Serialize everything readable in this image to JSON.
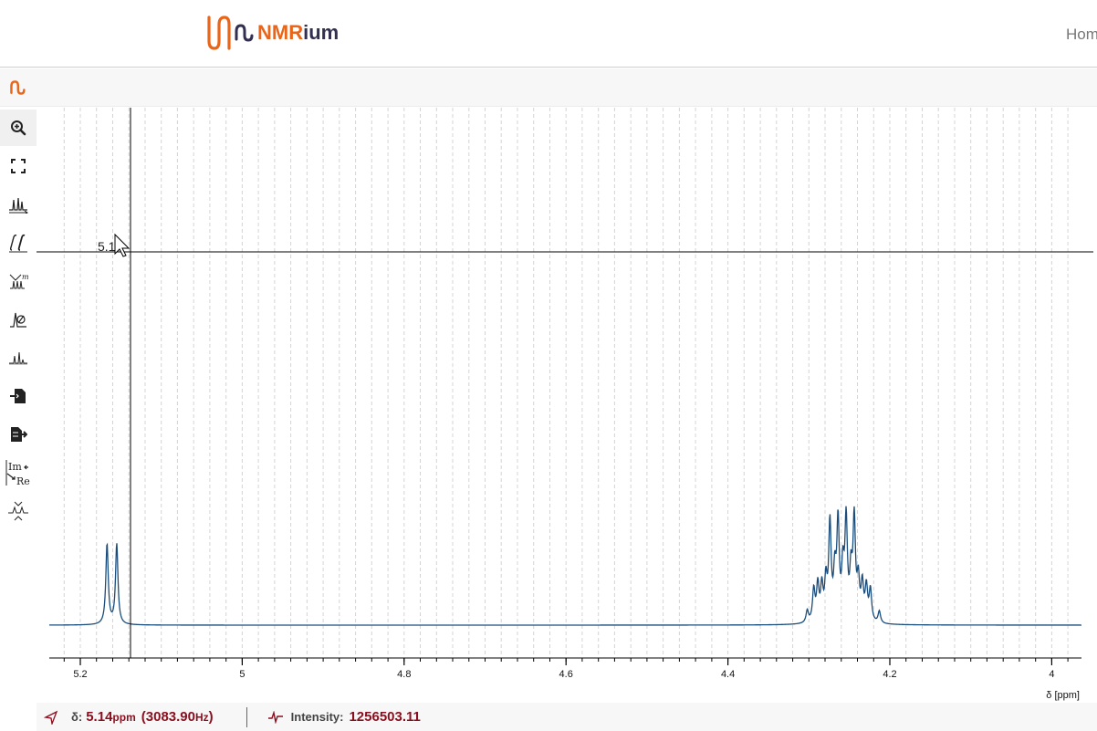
{
  "header": {
    "logo_text_nmr": "NMR",
    "logo_text_ium": "ium",
    "home_link": "Hom"
  },
  "toolbar": {
    "tools": [
      {
        "name": "zoom-tool",
        "icon": "zoom-in-icon",
        "active": true
      },
      {
        "name": "full-zoom-tool",
        "icon": "fullscreen-icon",
        "active": false
      },
      {
        "name": "peak-picking-tool",
        "icon": "peaks-icon",
        "active": false
      },
      {
        "name": "integral-tool",
        "icon": "integral-icon",
        "active": false
      },
      {
        "name": "multiplet-analysis-tool",
        "icon": "multiplet-icon",
        "active": false
      },
      {
        "name": "phase-correction-tool",
        "icon": "phase-correction-icon",
        "active": false
      },
      {
        "name": "baseline-correction-tool",
        "icon": "baseline-icon",
        "active": false
      },
      {
        "name": "import-tool",
        "icon": "import-file-icon",
        "active": false
      },
      {
        "name": "export-tool",
        "icon": "export-file-icon",
        "active": false
      },
      {
        "name": "real-imaginary-tool",
        "icon": "real-imaginary-icon",
        "active": false
      },
      {
        "name": "exclusion-zone-tool",
        "icon": "exclusion-zone-icon",
        "active": false
      }
    ],
    "re_im_labels": {
      "im": "Im",
      "re": "Re"
    }
  },
  "crosshair": {
    "label": "5.1"
  },
  "status": {
    "delta_label": "δ:",
    "delta_value": "5.14",
    "delta_unit": "ppm",
    "hz_open": "(",
    "hz_value": "3083.90",
    "hz_unit": "Hz",
    "hz_close": ")",
    "intensity_label": "Intensity:",
    "intensity_value": "1256503.11"
  },
  "colors": {
    "spectrum": "#1a4d7c",
    "accent": "#e8651a",
    "status_value": "#8a0f1e"
  },
  "chart_data": {
    "type": "line",
    "xlabel": "δ [ppm]",
    "x_reversed": true,
    "xlim": [
      3.96,
      5.24
    ],
    "ticks": [
      5.2,
      5.0,
      4.8,
      4.6,
      4.4,
      4.2,
      4.0
    ],
    "tick_labels": [
      "5.2",
      "5",
      "4.8",
      "4.6",
      "4.4",
      "4.2",
      "4"
    ],
    "peaks": [
      {
        "ppm": 5.167,
        "height": 1.0
      },
      {
        "ppm": 5.155,
        "height": 1.0
      },
      {
        "ppm": 4.302,
        "height": 0.15
      },
      {
        "ppm": 4.294,
        "height": 0.4
      },
      {
        "ppm": 4.289,
        "height": 0.45
      },
      {
        "ppm": 4.284,
        "height": 0.42
      },
      {
        "ppm": 4.279,
        "height": 0.48
      },
      {
        "ppm": 4.274,
        "height": 1.2
      },
      {
        "ppm": 4.268,
        "height": 0.55
      },
      {
        "ppm": 4.264,
        "height": 1.2
      },
      {
        "ppm": 4.258,
        "height": 0.6
      },
      {
        "ppm": 4.254,
        "height": 1.22
      },
      {
        "ppm": 4.248,
        "height": 0.55
      },
      {
        "ppm": 4.244,
        "height": 1.24
      },
      {
        "ppm": 4.239,
        "height": 0.48
      },
      {
        "ppm": 4.234,
        "height": 0.45
      },
      {
        "ppm": 4.229,
        "height": 0.42
      },
      {
        "ppm": 4.224,
        "height": 0.4
      },
      {
        "ppm": 4.213,
        "height": 0.15
      }
    ]
  }
}
